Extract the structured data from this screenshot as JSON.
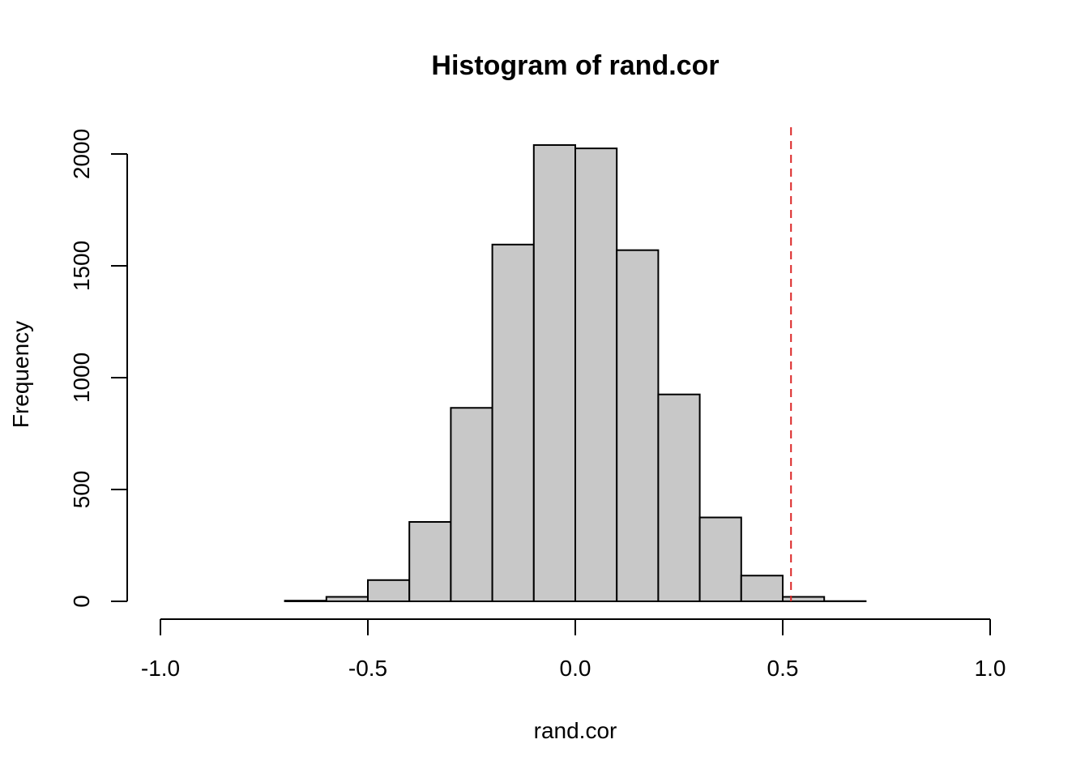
{
  "chart_data": {
    "type": "bar",
    "title": "Histogram of rand.cor",
    "xlabel": "rand.cor",
    "ylabel": "Frequency",
    "xlim": [
      -1.0,
      1.0
    ],
    "ylim": [
      0,
      2000
    ],
    "x_ticks": [
      {
        "value": -1.0,
        "label": "-1.0"
      },
      {
        "value": -0.5,
        "label": "-0.5"
      },
      {
        "value": 0.0,
        "label": "0.0"
      },
      {
        "value": 0.5,
        "label": "0.5"
      },
      {
        "value": 1.0,
        "label": "1.0"
      }
    ],
    "y_ticks": [
      {
        "value": 0,
        "label": "0"
      },
      {
        "value": 500,
        "label": "500"
      },
      {
        "value": 1000,
        "label": "1000"
      },
      {
        "value": 1500,
        "label": "1500"
      },
      {
        "value": 2000,
        "label": "2000"
      }
    ],
    "bins": [
      {
        "from": -0.7,
        "to": -0.6,
        "count": 3
      },
      {
        "from": -0.6,
        "to": -0.5,
        "count": 20
      },
      {
        "from": -0.5,
        "to": -0.4,
        "count": 95
      },
      {
        "from": -0.4,
        "to": -0.3,
        "count": 355
      },
      {
        "from": -0.3,
        "to": -0.2,
        "count": 865
      },
      {
        "from": -0.2,
        "to": -0.1,
        "count": 1595
      },
      {
        "from": -0.1,
        "to": 0.0,
        "count": 2040
      },
      {
        "from": 0.0,
        "to": 0.1,
        "count": 2025
      },
      {
        "from": 0.1,
        "to": 0.2,
        "count": 1570
      },
      {
        "from": 0.2,
        "to": 0.3,
        "count": 925
      },
      {
        "from": 0.3,
        "to": 0.4,
        "count": 375
      },
      {
        "from": 0.4,
        "to": 0.5,
        "count": 115
      },
      {
        "from": 0.5,
        "to": 0.6,
        "count": 20
      },
      {
        "from": 0.6,
        "to": 0.7,
        "count": 1
      }
    ],
    "reference_line": {
      "x": 0.52,
      "style": "dashed",
      "color": "#dc2626"
    },
    "bar_color": "#c8c8c8",
    "grid": false,
    "legend": "none"
  }
}
